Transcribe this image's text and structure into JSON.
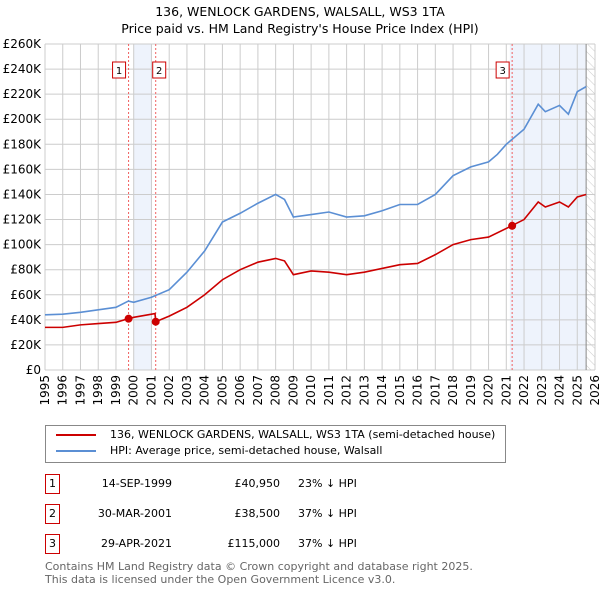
{
  "title_line1": "136, WENLOCK GARDENS, WALSALL, WS3 1TA",
  "title_line2": "Price paid vs. HM Land Registry's House Price Index (HPI)",
  "colors": {
    "property": "#cc0000",
    "hpi": "#5b8fd4",
    "shade": "#eef3fc",
    "grid": "#cccccc"
  },
  "chart_data": {
    "type": "line",
    "xlim": [
      1995,
      2026
    ],
    "ylim": [
      0,
      260000
    ],
    "x_ticks": [
      "1995",
      "1996",
      "1997",
      "1998",
      "1999",
      "2000",
      "2001",
      "2002",
      "2003",
      "2004",
      "2005",
      "2006",
      "2007",
      "2008",
      "2009",
      "2010",
      "2011",
      "2012",
      "2013",
      "2014",
      "2015",
      "2016",
      "2017",
      "2018",
      "2019",
      "2020",
      "2021",
      "2022",
      "2023",
      "2024",
      "2025",
      "2026"
    ],
    "y_ticks": [
      {
        "v": 0,
        "label": "£0"
      },
      {
        "v": 20000,
        "label": "£20K"
      },
      {
        "v": 40000,
        "label": "£40K"
      },
      {
        "v": 60000,
        "label": "£60K"
      },
      {
        "v": 80000,
        "label": "£80K"
      },
      {
        "v": 100000,
        "label": "£100K"
      },
      {
        "v": 120000,
        "label": "£120K"
      },
      {
        "v": 140000,
        "label": "£140K"
      },
      {
        "v": 160000,
        "label": "£160K"
      },
      {
        "v": 180000,
        "label": "£180K"
      },
      {
        "v": 200000,
        "label": "£200K"
      },
      {
        "v": 220000,
        "label": "£220K"
      },
      {
        "v": 240000,
        "label": "£240K"
      },
      {
        "v": 260000,
        "label": "£260K"
      }
    ],
    "series": [
      {
        "name": "136, WENLOCK GARDENS, WALSALL, WS3 1TA (semi-detached house)",
        "color": "#cc0000",
        "x": [
          1995,
          1996,
          1997,
          1998,
          1999,
          1999.7,
          2000,
          2001.2,
          2001.24,
          2002,
          2003,
          2004,
          2005,
          2006,
          2007,
          2008,
          2008.5,
          2009,
          2010,
          2011,
          2012,
          2013,
          2014,
          2015,
          2016,
          2017,
          2018,
          2019,
          2020,
          2021.3,
          2022,
          2022.8,
          2023.2,
          2024,
          2024.5,
          2025,
          2025.5
        ],
        "y": [
          34000,
          34000,
          36000,
          37000,
          38000,
          40950,
          42000,
          45000,
          38500,
          43000,
          50000,
          60000,
          72000,
          80000,
          86000,
          89000,
          87000,
          76000,
          79000,
          78000,
          76000,
          78000,
          81000,
          84000,
          85000,
          92000,
          100000,
          104000,
          106000,
          115000,
          120000,
          134000,
          130000,
          134000,
          130000,
          138000,
          140000
        ]
      },
      {
        "name": "HPI: Average price, semi-detached house, Walsall",
        "color": "#5b8fd4",
        "x": [
          1995,
          1996,
          1997,
          1998,
          1999,
          1999.7,
          2000,
          2001,
          2002,
          2003,
          2004,
          2005,
          2006,
          2007,
          2008,
          2008.5,
          2009,
          2010,
          2011,
          2012,
          2013,
          2014,
          2015,
          2016,
          2017,
          2018,
          2019,
          2020,
          2020.5,
          2021,
          2022,
          2022.8,
          2023.2,
          2024,
          2024.5,
          2025,
          2025.5
        ],
        "y": [
          44000,
          44500,
          46000,
          48000,
          50000,
          55000,
          54000,
          58000,
          64000,
          78000,
          95000,
          118000,
          125000,
          133000,
          140000,
          136000,
          122000,
          124000,
          126000,
          122000,
          123000,
          127000,
          132000,
          132000,
          140000,
          155000,
          162000,
          166000,
          172000,
          180000,
          192000,
          212000,
          206000,
          211000,
          204000,
          222000,
          226000
        ]
      }
    ],
    "sales": [
      {
        "n": "1",
        "x": 1999.71,
        "y": 40950
      },
      {
        "n": "2",
        "x": 2001.24,
        "y": 38500
      },
      {
        "n": "3",
        "x": 2021.33,
        "y": 115000
      }
    ],
    "shaded": [
      [
        2000.0,
        2001.0
      ],
      [
        2021.2,
        2025.5
      ]
    ],
    "hatched": [
      2025.5,
      2026
    ]
  },
  "legend": {
    "property": "136, WENLOCK GARDENS, WALSALL, WS3 1TA (semi-detached house)",
    "hpi": "HPI: Average price, semi-detached house, Walsall"
  },
  "transactions": [
    {
      "n": "1",
      "date": "14-SEP-1999",
      "price": "£40,950",
      "diff": "23% ↓ HPI"
    },
    {
      "n": "2",
      "date": "30-MAR-2001",
      "price": "£38,500",
      "diff": "37% ↓ HPI"
    },
    {
      "n": "3",
      "date": "29-APR-2021",
      "price": "£115,000",
      "diff": "37% ↓ HPI"
    }
  ],
  "footer": {
    "line1": "Contains HM Land Registry data © Crown copyright and database right 2025.",
    "line2": "This data is licensed under the Open Government Licence v3.0."
  }
}
